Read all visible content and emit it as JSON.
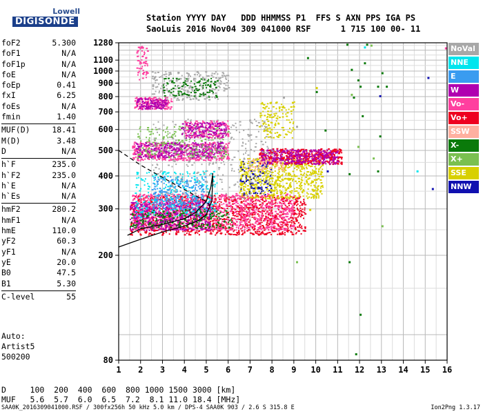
{
  "logo": {
    "line1": "Lowell",
    "line2": "DIGISONDE"
  },
  "header": {
    "line1": "Station YYYY DAY   DDD HHMMSS P1  FFS S AXN PPS IGA PS",
    "line2": "SaoLuis 2016 Nov04 309 041000 RSF      1 715 100 00- 11"
  },
  "params": [
    {
      "k": "foF2",
      "v": "5.300"
    },
    {
      "k": "foF1",
      "v": "N/A"
    },
    {
      "k": "foF1p",
      "v": "N/A"
    },
    {
      "k": "foE",
      "v": "N/A"
    },
    {
      "k": "foEp",
      "v": "0.41"
    },
    {
      "k": "fxI",
      "v": "6.25"
    },
    {
      "k": "foEs",
      "v": "N/A"
    },
    {
      "k": "fmin",
      "v": "1.40"
    },
    {
      "k": "MUF(D)",
      "v": "18.41"
    },
    {
      "k": "M(D)",
      "v": "3.48"
    },
    {
      "k": "D",
      "v": "N/A"
    },
    {
      "k": "h`F",
      "v": "235.0"
    },
    {
      "k": "h`F2",
      "v": "235.0"
    },
    {
      "k": "h`E",
      "v": "N/A"
    },
    {
      "k": "h`Es",
      "v": "N/A"
    },
    {
      "k": "hmF2",
      "v": "280.2"
    },
    {
      "k": "hmF1",
      "v": "N/A"
    },
    {
      "k": "hmE",
      "v": "110.0"
    },
    {
      "k": "yF2",
      "v": "60.3"
    },
    {
      "k": "yF1",
      "v": "N/A"
    },
    {
      "k": "yE",
      "v": "20.0"
    },
    {
      "k": "B0",
      "v": "47.5"
    },
    {
      "k": "B1",
      "v": "5.30"
    },
    {
      "k": "C-level",
      "v": "55"
    }
  ],
  "auto": {
    "line1": "Auto:",
    "line2": "Artist5",
    "line3": "500200"
  },
  "dline": {
    "d": "D     100  200  400  600  800 1000 1500 3000 [km]",
    "muf": "MUF   5.6  5.7  6.0  6.5  7.2  8.1 11.0 18.4 [MHz]"
  },
  "footer": "SAA0K_2016309041000.RSF / 300fx256h 50 kHz 5.0 km / DPS-4 SAA0K 903 / 2.6 S 315.8 E",
  "version": "Ion2Png 1.3.17",
  "legend": [
    {
      "label": "NoVal",
      "color": "#a8a8a8"
    },
    {
      "label": "NNE",
      "color": "#00e5ee"
    },
    {
      "label": "E",
      "color": "#3a9cf0"
    },
    {
      "label": "W",
      "color": "#b000b0"
    },
    {
      "label": "Vo-",
      "color": "#ff3f9f"
    },
    {
      "label": "Vo+",
      "color": "#ee0020"
    },
    {
      "label": "SSW",
      "color": "#ffb0a0"
    },
    {
      "label": "X-",
      "color": "#0a7a0a"
    },
    {
      "label": "X+",
      "color": "#7ac050"
    },
    {
      "label": "SSE",
      "color": "#d8d000"
    },
    {
      "label": "NNW",
      "color": "#1010b0"
    }
  ],
  "chart_data": {
    "type": "scatter",
    "title": "",
    "xlabel": "",
    "ylabel": "",
    "xlim": [
      1,
      16
    ],
    "ylim": [
      80,
      1280
    ],
    "y_scale": "log",
    "xticks": [
      1,
      2,
      3,
      4,
      5,
      6,
      7,
      8,
      9,
      10,
      11,
      12,
      13,
      14,
      15,
      16
    ],
    "yticks": [
      80,
      200,
      300,
      400,
      500,
      600,
      700,
      800,
      900,
      1000,
      1100,
      1280
    ],
    "grid": true,
    "legend_placement": "right",
    "clusters": [
      {
        "series": "Vo+",
        "xr": [
          1.5,
          9.5
        ],
        "yr": [
          240,
          340
        ],
        "n": 1300
      },
      {
        "series": "Vo-",
        "xr": [
          1.6,
          9.0
        ],
        "yr": [
          250,
          345
        ],
        "n": 1000
      },
      {
        "series": "W",
        "xr": [
          1.5,
          5.2
        ],
        "yr": [
          250,
          320
        ],
        "n": 500
      },
      {
        "series": "SSE",
        "xr": [
          6.5,
          10.3
        ],
        "yr": [
          330,
          470
        ],
        "n": 700
      },
      {
        "series": "SSE",
        "xr": [
          7.4,
          9.0
        ],
        "yr": [
          560,
          770
        ],
        "n": 140
      },
      {
        "series": "Vo+",
        "xr": [
          7.4,
          11.2
        ],
        "yr": [
          445,
          510
        ],
        "n": 420
      },
      {
        "series": "W",
        "xr": [
          7.5,
          11.0
        ],
        "yr": [
          445,
          505
        ],
        "n": 300
      },
      {
        "series": "Vo-",
        "xr": [
          1.6,
          6.0
        ],
        "yr": [
          460,
          540
        ],
        "n": 450
      },
      {
        "series": "W",
        "xr": [
          1.7,
          5.8
        ],
        "yr": [
          470,
          540
        ],
        "n": 350
      },
      {
        "series": "X+",
        "xr": [
          1.8,
          6.0
        ],
        "yr": [
          470,
          620
        ],
        "n": 200
      },
      {
        "series": "NNE",
        "xr": [
          1.7,
          5.5
        ],
        "yr": [
          280,
          420
        ],
        "n": 280
      },
      {
        "series": "E",
        "xr": [
          2.5,
          5.0
        ],
        "yr": [
          300,
          400
        ],
        "n": 240
      },
      {
        "series": "NoVal",
        "xr": [
          2.5,
          8.0
        ],
        "yr": [
          330,
          660
        ],
        "n": 300
      },
      {
        "series": "Vo-",
        "xr": [
          4.0,
          6.0
        ],
        "yr": [
          560,
          650
        ],
        "n": 160
      },
      {
        "series": "W",
        "xr": [
          3.8,
          5.9
        ],
        "yr": [
          560,
          640
        ],
        "n": 130
      },
      {
        "series": "Vo-",
        "xr": [
          1.7,
          3.4
        ],
        "yr": [
          720,
          800
        ],
        "n": 160
      },
      {
        "series": "W",
        "xr": [
          1.8,
          3.2
        ],
        "yr": [
          720,
          790
        ],
        "n": 110
      },
      {
        "series": "NoVal",
        "xr": [
          2.5,
          6.0
        ],
        "yr": [
          780,
          1000
        ],
        "n": 240
      },
      {
        "series": "X-",
        "xr": [
          3.0,
          5.5
        ],
        "yr": [
          800,
          950
        ],
        "n": 110
      },
      {
        "series": "Vo-",
        "xr": [
          1.8,
          2.3
        ],
        "yr": [
          930,
          1250
        ],
        "n": 60
      },
      {
        "series": "NNW",
        "xr": [
          6.5,
          8.0
        ],
        "yr": [
          340,
          460
        ],
        "n": 80
      },
      {
        "series": "X-",
        "xr": [
          1.5,
          6.2
        ],
        "yr": [
          255,
          300
        ],
        "n": 200
      },
      {
        "series": "SSW",
        "xr": [
          6.8,
          8.5
        ],
        "yr": [
          420,
          470
        ],
        "n": 60
      }
    ],
    "sparse": [
      {
        "series": "X-",
        "x": 9.6,
        "y": 1130
      },
      {
        "series": "X-",
        "x": 10.0,
        "y": 840
      },
      {
        "series": "X-",
        "x": 11.6,
        "y": 1020
      },
      {
        "series": "X-",
        "x": 11.9,
        "y": 930
      },
      {
        "series": "X-",
        "x": 12.0,
        "y": 880
      },
      {
        "series": "X-",
        "x": 12.1,
        "y": 680
      },
      {
        "series": "X-",
        "x": 11.7,
        "y": 800
      },
      {
        "series": "X-",
        "x": 12.3,
        "y": 1270
      },
      {
        "series": "X-",
        "x": 12.8,
        "y": 880
      },
      {
        "series": "X-",
        "x": 11.4,
        "y": 1270
      },
      {
        "series": "X-",
        "x": 11.5,
        "y": 190
      },
      {
        "series": "X-",
        "x": 12.0,
        "y": 120
      },
      {
        "series": "X-",
        "x": 11.8,
        "y": 85
      },
      {
        "series": "X-",
        "x": 12.8,
        "y": 420
      },
      {
        "series": "X-",
        "x": 12.9,
        "y": 570
      },
      {
        "series": "X-",
        "x": 13.0,
        "y": 990
      },
      {
        "series": "X-",
        "x": 10.4,
        "y": 600
      },
      {
        "series": "X-",
        "x": 11.5,
        "y": 410
      },
      {
        "series": "X-",
        "x": 12.2,
        "y": 1080
      },
      {
        "series": "X-",
        "x": 13.2,
        "y": 880
      },
      {
        "series": "X+",
        "x": 11.6,
        "y": 820
      },
      {
        "series": "X+",
        "x": 12.5,
        "y": 1260
      },
      {
        "series": "X+",
        "x": 9.1,
        "y": 190
      },
      {
        "series": "X+",
        "x": 12.6,
        "y": 470
      },
      {
        "series": "X+",
        "x": 11.9,
        "y": 520
      },
      {
        "series": "X+",
        "x": 13.0,
        "y": 260
      },
      {
        "series": "NNW",
        "x": 15.1,
        "y": 950
      },
      {
        "series": "NNW",
        "x": 15.3,
        "y": 360
      },
      {
        "series": "NNW",
        "x": 12.9,
        "y": 810
      },
      {
        "series": "NNW",
        "x": 10.5,
        "y": 420
      },
      {
        "series": "NNE",
        "x": 14.6,
        "y": 420
      },
      {
        "series": "NNE",
        "x": 12.2,
        "y": 1240
      },
      {
        "series": "SSE",
        "x": 10.0,
        "y": 870
      },
      {
        "series": "SSE",
        "x": 9.7,
        "y": 300
      },
      {
        "series": "Vo-",
        "x": 15.9,
        "y": 1230
      },
      {
        "series": "NoVal",
        "x": 9.1,
        "y": 620
      },
      {
        "series": "NoVal",
        "x": 8.5,
        "y": 800
      }
    ],
    "curves": [
      {
        "name": "profile",
        "style": "solid",
        "points": [
          [
            1.0,
            215
          ],
          [
            2.0,
            230
          ],
          [
            3.0,
            245
          ],
          [
            4.0,
            258
          ],
          [
            4.6,
            270
          ],
          [
            5.0,
            285
          ],
          [
            5.25,
            320
          ],
          [
            5.3,
            400
          ]
        ]
      },
      {
        "name": "virtual-height",
        "style": "solid",
        "points": [
          [
            1.4,
            238
          ],
          [
            2.0,
            252
          ],
          [
            3.0,
            262
          ],
          [
            4.0,
            275
          ],
          [
            4.5,
            290
          ],
          [
            5.0,
            320
          ],
          [
            5.2,
            360
          ],
          [
            5.3,
            410
          ]
        ]
      },
      {
        "name": "extension",
        "style": "dashed",
        "points": [
          [
            1.0,
            500
          ],
          [
            2.0,
            440
          ],
          [
            3.0,
            395
          ],
          [
            4.0,
            355
          ],
          [
            5.0,
            320
          ],
          [
            5.3,
            300
          ]
        ]
      }
    ]
  }
}
